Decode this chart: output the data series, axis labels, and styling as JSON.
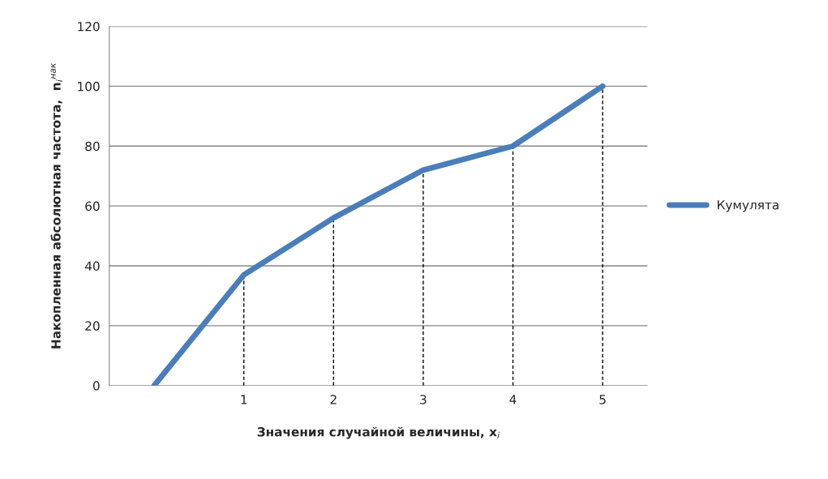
{
  "chart_data": {
    "type": "line",
    "xlabel": "Значения случайной величины, x$_{i}$",
    "ylabel": "Накопленная абсолютная частота,  n$_{i}$$^{нак}$",
    "categories": [
      null,
      "1",
      "2",
      "3",
      "4",
      "5"
    ],
    "series": [
      {
        "name": "Кумулята",
        "color": "#4a7ebb",
        "values": [
          0,
          37,
          56,
          72,
          80,
          100
        ],
        "errors": [
          null,
          [
            0,
            37
          ],
          [
            0,
            56
          ],
          [
            0,
            72
          ],
          [
            0,
            80
          ],
          [
            0,
            100
          ]
        ]
      }
    ],
    "ylim": [
      0,
      120
    ],
    "yticks": [
      0,
      20,
      40,
      60,
      80,
      100,
      120
    ],
    "grid": "y",
    "legend": "right",
    "marker": "none",
    "line_style": "solid"
  }
}
